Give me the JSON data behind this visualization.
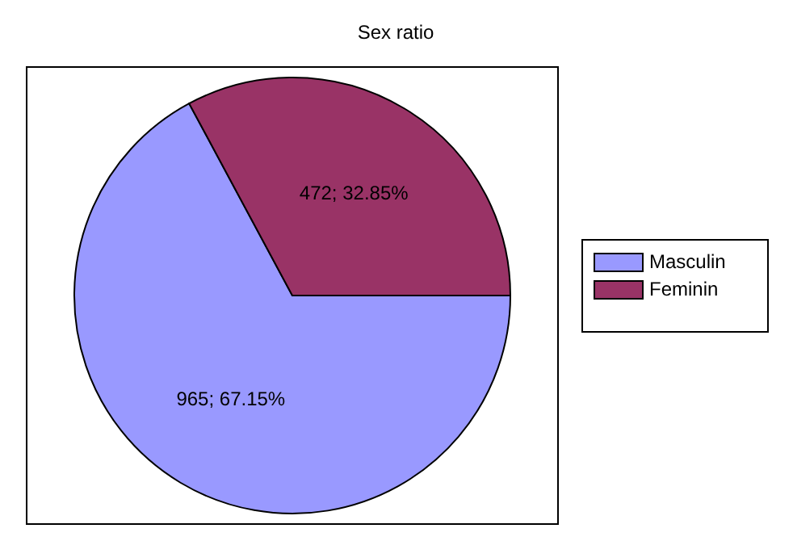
{
  "chart_data": {
    "type": "pie",
    "title": "Sex ratio",
    "categories": [
      "Masculin",
      "Feminin"
    ],
    "values": [
      965,
      472
    ],
    "colors": [
      "#9999ff",
      "#993366"
    ],
    "value_labels": [
      "965; 67.15%",
      "472; 32.85%"
    ],
    "legend": "right"
  }
}
